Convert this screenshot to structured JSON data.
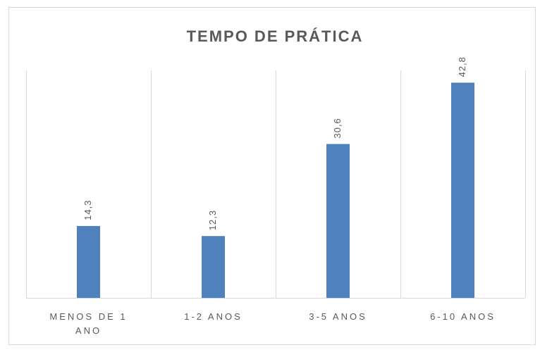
{
  "chart_data": {
    "type": "bar",
    "title": "TEMPO DE PRÁTICA",
    "categories": [
      "MENOS DE 1 ANO",
      "1-2 ANOS",
      "3-5 ANOS",
      "6-10 ANOS"
    ],
    "values": [
      14.3,
      12.3,
      30.6,
      42.8
    ],
    "value_labels": [
      "14,3",
      "12,3",
      "30,6",
      "42,8"
    ],
    "color": "#4f81bd"
  }
}
